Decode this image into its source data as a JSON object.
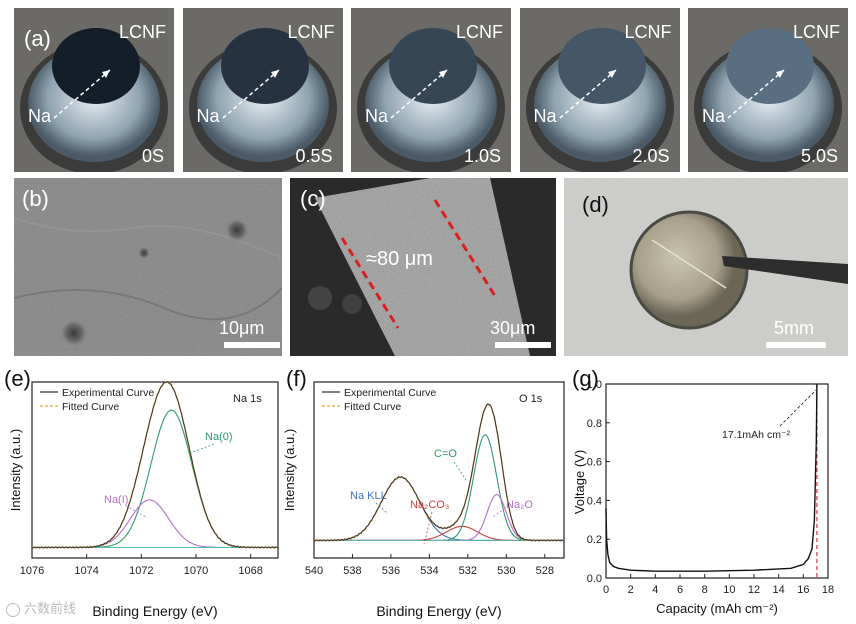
{
  "panel_a": {
    "label": "(a)",
    "frames": [
      {
        "lcnf": "LCNF",
        "na": "Na",
        "time": "0S",
        "wet": 0.0
      },
      {
        "lcnf": "LCNF",
        "na": "Na",
        "time": "0.5S",
        "wet": 0.25
      },
      {
        "lcnf": "LCNF",
        "na": "Na",
        "time": "1.0S",
        "wet": 0.5
      },
      {
        "lcnf": "LCNF",
        "na": "Na",
        "time": "2.0S",
        "wet": 0.7
      },
      {
        "lcnf": "LCNF",
        "na": "Na",
        "time": "5.0S",
        "wet": 1.0
      }
    ]
  },
  "panel_b": {
    "label": "(b)",
    "scale": "10μm"
  },
  "panel_c": {
    "label": "(c)",
    "thickness": "≈80 μm",
    "scale": "30μm"
  },
  "panel_d": {
    "label": "(d)",
    "scale": "5mm"
  },
  "panel_e": {
    "label": "(e)"
  },
  "panel_f": {
    "label": "(f)"
  },
  "panel_g": {
    "label": "(g)"
  },
  "watermark": "六数前线",
  "colors": {
    "experimental": "#333333",
    "fitted": "#e8a33a",
    "na0": "#2e9c6a",
    "nai": "#b56fcf",
    "nakll": "#3f73c2",
    "na2co3": "#d83a3a",
    "na2o": "#b56fcf",
    "baseline": "#5ab8a8",
    "cutoff": "#d83a3a"
  },
  "chart_data": [
    {
      "type": "line",
      "panel": "e",
      "title": "Na 1s",
      "xlabel": "Binding Energy (eV)",
      "ylabel": "Intensity (a.u.)",
      "xlim": [
        1076,
        1067
      ],
      "ylim": [
        0,
        1
      ],
      "x_ticks": [
        1076,
        1074,
        1072,
        1070,
        1068
      ],
      "legend": [
        "Experimental Curve",
        "Fitted Curve"
      ],
      "legend_position": "top-left",
      "peaks": [
        {
          "name": "Na(0)",
          "center": 1070.9,
          "height": 0.78,
          "width": 0.75
        },
        {
          "name": "Na(I)",
          "center": 1071.7,
          "height": 0.27,
          "width": 0.7
        }
      ],
      "baseline": 0.06,
      "annotations": [
        "Na(0)",
        "Na(I)"
      ]
    },
    {
      "type": "line",
      "panel": "f",
      "title": "O 1s",
      "xlabel": "Binding Energy (eV)",
      "ylabel": "Intensity (a.u.)",
      "xlim": [
        540,
        527
      ],
      "ylim": [
        0,
        1
      ],
      "x_ticks": [
        540,
        538,
        536,
        534,
        532,
        530,
        528
      ],
      "legend": [
        "Experimental Curve",
        "Fitted Curve"
      ],
      "legend_position": "top-left",
      "peaks": [
        {
          "name": "Na KLL",
          "center": 535.5,
          "height": 0.36,
          "width": 1.0
        },
        {
          "name": "Na2CO3",
          "center": 532.3,
          "height": 0.08,
          "width": 0.8
        },
        {
          "name": "C=O",
          "center": 531.1,
          "height": 0.6,
          "width": 0.6
        },
        {
          "name": "Na2O",
          "center": 530.5,
          "height": 0.26,
          "width": 0.5
        }
      ],
      "baseline": 0.1,
      "annotations": [
        "Na KLL",
        "Na₂CO₃",
        "C=O",
        "Na₂O"
      ]
    },
    {
      "type": "line",
      "panel": "g",
      "xlabel": "Capacity (mAh cm⁻²)",
      "ylabel": "Voltage (V)",
      "xlim": [
        0,
        18
      ],
      "ylim": [
        0,
        1.0
      ],
      "x_ticks": [
        0,
        2,
        4,
        6,
        8,
        10,
        12,
        14,
        16,
        18
      ],
      "y_ticks": [
        0.0,
        0.2,
        0.4,
        0.6,
        0.8,
        1.0
      ],
      "series": [
        {
          "x": [
            0,
            0.05,
            0.15,
            0.3,
            0.6,
            1,
            2,
            4,
            8,
            12,
            15,
            16,
            16.4,
            16.7,
            16.9,
            17.05,
            17.1
          ],
          "y": [
            0.36,
            0.2,
            0.12,
            0.08,
            0.06,
            0.05,
            0.04,
            0.035,
            0.035,
            0.04,
            0.05,
            0.07,
            0.1,
            0.15,
            0.3,
            0.7,
            1.0
          ]
        }
      ],
      "cutoff_x": 17.1,
      "annotation": "17.1mAh cm⁻²"
    }
  ]
}
